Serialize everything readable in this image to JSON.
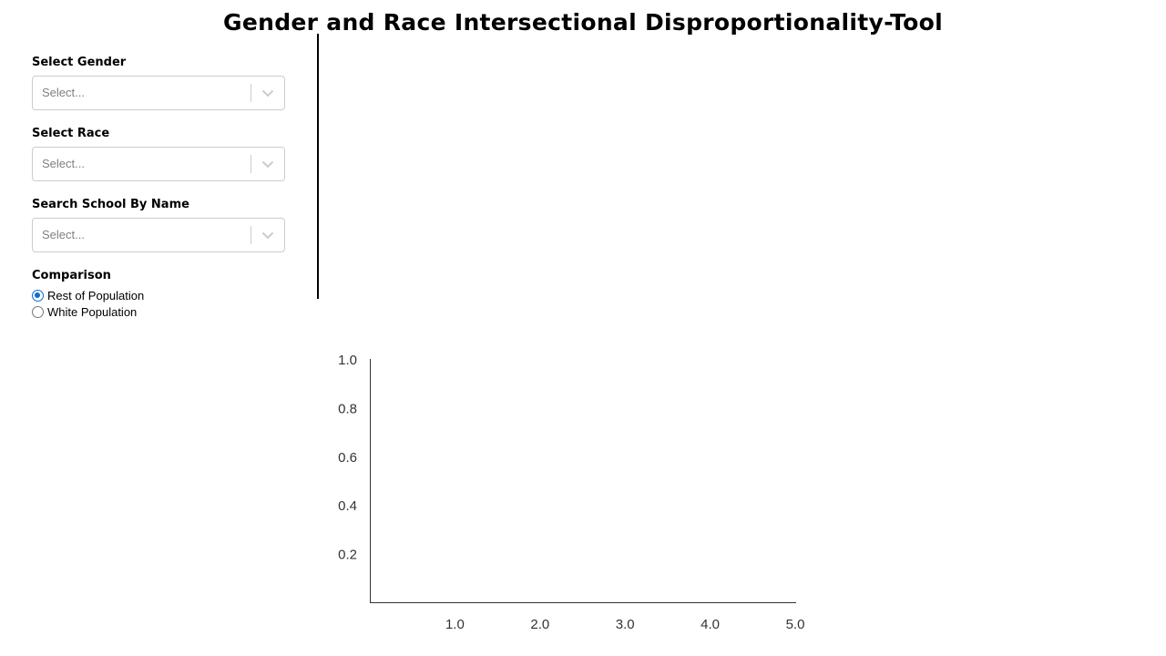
{
  "title": "Gender and Race Intersectional Disproportionality-Tool",
  "filters": {
    "gender": {
      "label": "Select Gender",
      "placeholder": "Select..."
    },
    "race": {
      "label": "Select Race",
      "placeholder": "Select..."
    },
    "school": {
      "label": "Search School By Name",
      "placeholder": "Select..."
    }
  },
  "comparison": {
    "label": "Comparison",
    "options": [
      {
        "label": "Rest of Population",
        "checked": true
      },
      {
        "label": "White Population",
        "checked": false
      }
    ]
  },
  "colors": {
    "radio_accent": "#0a6ed1",
    "select_border": "#cccccc",
    "placeholder_text": "#808080",
    "axis": "#333333"
  },
  "icons": {
    "dropdown": "chevron-down-icon"
  },
  "chart_data": {
    "type": "scatter",
    "title": "",
    "xlabel": "",
    "ylabel": "",
    "x_ticks": [
      "1.0",
      "2.0",
      "3.0",
      "4.0",
      "5.0"
    ],
    "y_ticks": [
      "0.2",
      "0.4",
      "0.6",
      "0.8",
      "1.0"
    ],
    "xlim": [
      0,
      5
    ],
    "ylim": [
      0,
      1
    ],
    "grid": false,
    "series": []
  }
}
